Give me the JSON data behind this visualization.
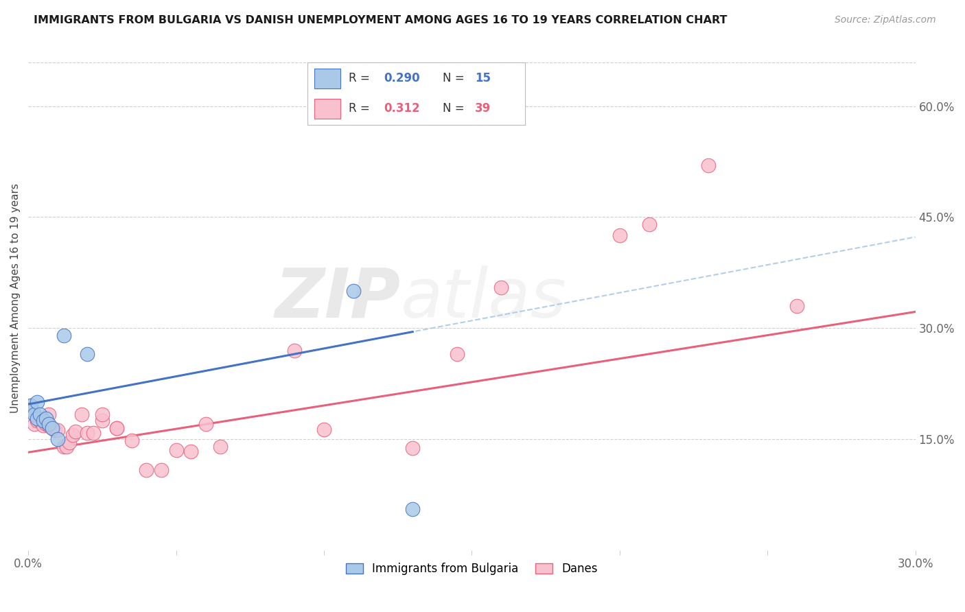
{
  "title": "IMMIGRANTS FROM BULGARIA VS DANISH UNEMPLOYMENT AMONG AGES 16 TO 19 YEARS CORRELATION CHART",
  "source": "Source: ZipAtlas.com",
  "ylabel": "Unemployment Among Ages 16 to 19 years",
  "xlim": [
    0.0,
    0.3
  ],
  "ylim": [
    0.0,
    0.68
  ],
  "color_blue": "#aac9e8",
  "color_pink": "#f9c0ce",
  "line_blue": "#4472c4",
  "line_dashed_blue": "#aac9e8",
  "line_pink": "#e8607a",
  "background": "#ffffff",
  "grid_color": "#d0d0d0",
  "legend_r1": "R =  0.290",
  "legend_n1": "N = 15",
  "legend_r2": "R =  0.312",
  "legend_n2": "N = 39",
  "watermark": "ZIPatlas",
  "bulgaria_x": [
    0.001,
    0.001,
    0.002,
    0.003,
    0.003,
    0.004,
    0.005,
    0.006,
    0.007,
    0.008,
    0.01,
    0.012,
    0.02,
    0.11,
    0.13
  ],
  "bulgaria_y": [
    0.195,
    0.19,
    0.183,
    0.2,
    0.178,
    0.183,
    0.175,
    0.178,
    0.17,
    0.165,
    0.15,
    0.29,
    0.265,
    0.35,
    0.055
  ],
  "danes_x": [
    0.001,
    0.002,
    0.003,
    0.004,
    0.005,
    0.006,
    0.007,
    0.007,
    0.008,
    0.009,
    0.01,
    0.012,
    0.013,
    0.014,
    0.015,
    0.016,
    0.018,
    0.02,
    0.022,
    0.025,
    0.025,
    0.03,
    0.03,
    0.035,
    0.04,
    0.045,
    0.05,
    0.055,
    0.06,
    0.065,
    0.09,
    0.1,
    0.13,
    0.145,
    0.16,
    0.2,
    0.21,
    0.23,
    0.26
  ],
  "danes_y": [
    0.195,
    0.17,
    0.175,
    0.175,
    0.168,
    0.17,
    0.168,
    0.183,
    0.165,
    0.162,
    0.162,
    0.14,
    0.14,
    0.145,
    0.155,
    0.16,
    0.183,
    0.158,
    0.158,
    0.175,
    0.183,
    0.165,
    0.165,
    0.148,
    0.108,
    0.108,
    0.135,
    0.133,
    0.17,
    0.14,
    0.27,
    0.163,
    0.138,
    0.265,
    0.355,
    0.425,
    0.44,
    0.52,
    0.33
  ],
  "bul_line_x0": 0.0,
  "bul_line_y0": 0.197,
  "bul_line_x1": 0.13,
  "bul_line_y1": 0.295,
  "dan_line_x0": 0.0,
  "dan_line_y0": 0.132,
  "dan_line_x1": 0.3,
  "dan_line_y1": 0.322
}
